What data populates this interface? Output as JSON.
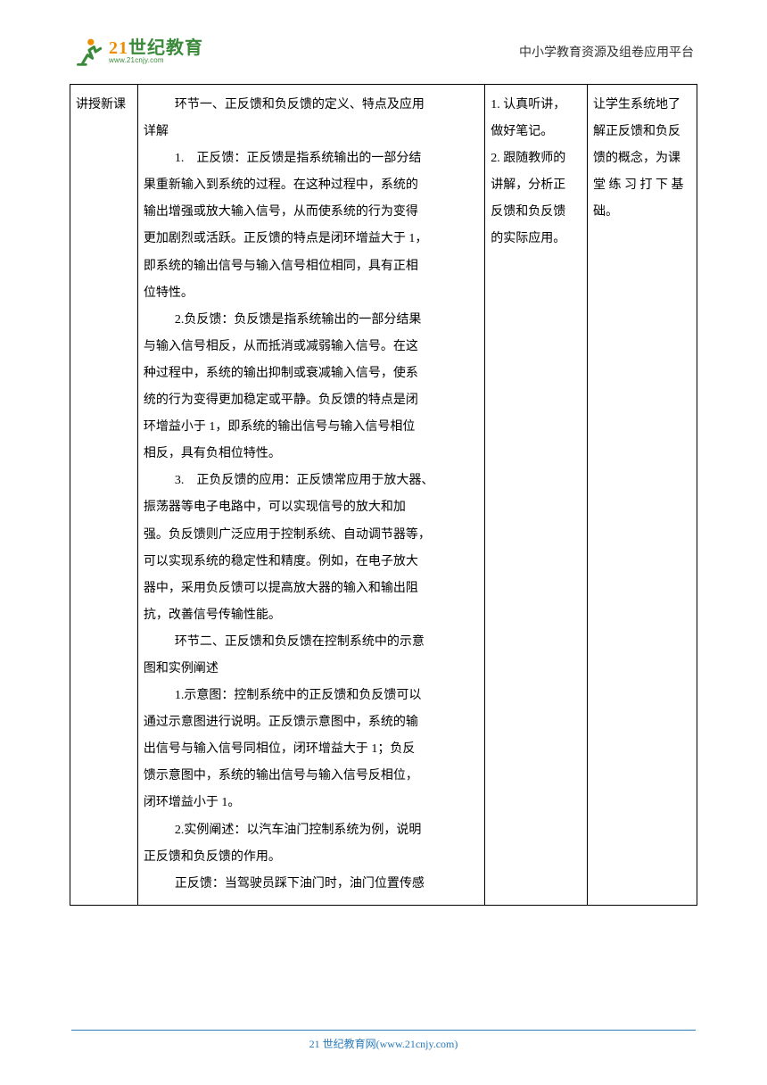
{
  "header": {
    "logo_num": "21",
    "logo_text": "世纪教育",
    "logo_url": "www.21cnjy.com",
    "right_text": "中小学教育资源及组卷应用平台"
  },
  "table": {
    "col1": "讲授新课",
    "col2_lines": [
      {
        "cls": "indent-3",
        "t": "环节一、正反馈和负反馈的定义、特点及应用"
      },
      {
        "cls": "",
        "t": "详解"
      },
      {
        "cls": "indent-3",
        "t": "1.　正反馈：正反馈是指系统输出的一部分结"
      },
      {
        "cls": "",
        "t": "果重新输入到系统的过程。在这种过程中，系统的"
      },
      {
        "cls": "",
        "t": "输出增强或放大输入信号，从而使系统的行为变得"
      },
      {
        "cls": "",
        "t": "更加剧烈或活跃。正反馈的特点是闭环增益大于 1，"
      },
      {
        "cls": "",
        "t": "即系统的输出信号与输入信号相位相同，具有正相"
      },
      {
        "cls": "",
        "t": "位特性。"
      },
      {
        "cls": "indent-3",
        "t": "2.负反馈：负反馈是指系统输出的一部分结果"
      },
      {
        "cls": "",
        "t": "与输入信号相反，从而抵消或减弱输入信号。在这"
      },
      {
        "cls": "",
        "t": "种过程中，系统的输出抑制或衰减输入信号，使系"
      },
      {
        "cls": "",
        "t": "统的行为变得更加稳定或平静。负反馈的特点是闭"
      },
      {
        "cls": "",
        "t": "环增益小于 1，即系统的输出信号与输入信号相位"
      },
      {
        "cls": "",
        "t": "相反，具有负相位特性。"
      },
      {
        "cls": "indent-3",
        "t": "3.　正负反馈的应用：正反馈常应用于放大器、"
      },
      {
        "cls": "",
        "t": "振荡器等电子电路中，可以实现信号的放大和加"
      },
      {
        "cls": "",
        "t": "强。负反馈则广泛应用于控制系统、自动调节器等，"
      },
      {
        "cls": "",
        "t": "可以实现系统的稳定性和精度。例如，在电子放大"
      },
      {
        "cls": "",
        "t": "器中，采用负反馈可以提高放大器的输入和输出阻"
      },
      {
        "cls": "",
        "t": "抗，改善信号传输性能。"
      },
      {
        "cls": "indent-3",
        "t": "环节二、正反馈和负反馈在控制系统中的示意"
      },
      {
        "cls": "",
        "t": "图和实例阐述"
      },
      {
        "cls": "indent-3",
        "t": "1.示意图：控制系统中的正反馈和负反馈可以"
      },
      {
        "cls": "",
        "t": "通过示意图进行说明。正反馈示意图中，系统的输"
      },
      {
        "cls": "",
        "t": "出信号与输入信号同相位，闭环增益大于 1；负反"
      },
      {
        "cls": "",
        "t": "馈示意图中，系统的输出信号与输入信号反相位，"
      },
      {
        "cls": "",
        "t": "闭环增益小于 1。"
      },
      {
        "cls": "indent-3",
        "t": "2.实例阐述：以汽车油门控制系统为例，说明"
      },
      {
        "cls": "",
        "t": "正反馈和负反馈的作用。"
      },
      {
        "cls": "indent-3",
        "t": "正反馈：当驾驶员踩下油门时，油门位置传感"
      }
    ],
    "col3_lines": [
      "1. 认真听讲，",
      "做好笔记。",
      "2. 跟随教师的",
      "讲解，分析正",
      "反馈和负反馈",
      "的实际应用。"
    ],
    "col4_lines": [
      "让学生系统地了",
      "解正反馈和负反",
      "馈的概念，为课",
      "堂 练 习 打 下 基",
      "础。"
    ]
  },
  "footer": {
    "brand": "21 世纪教育网",
    "domain": "(www.21cnjy.com)"
  },
  "colors": {
    "orange": "#f08c00",
    "green": "#3b8a3b",
    "blue": "#2b7bb9",
    "text": "#000000",
    "bg": "#ffffff"
  }
}
